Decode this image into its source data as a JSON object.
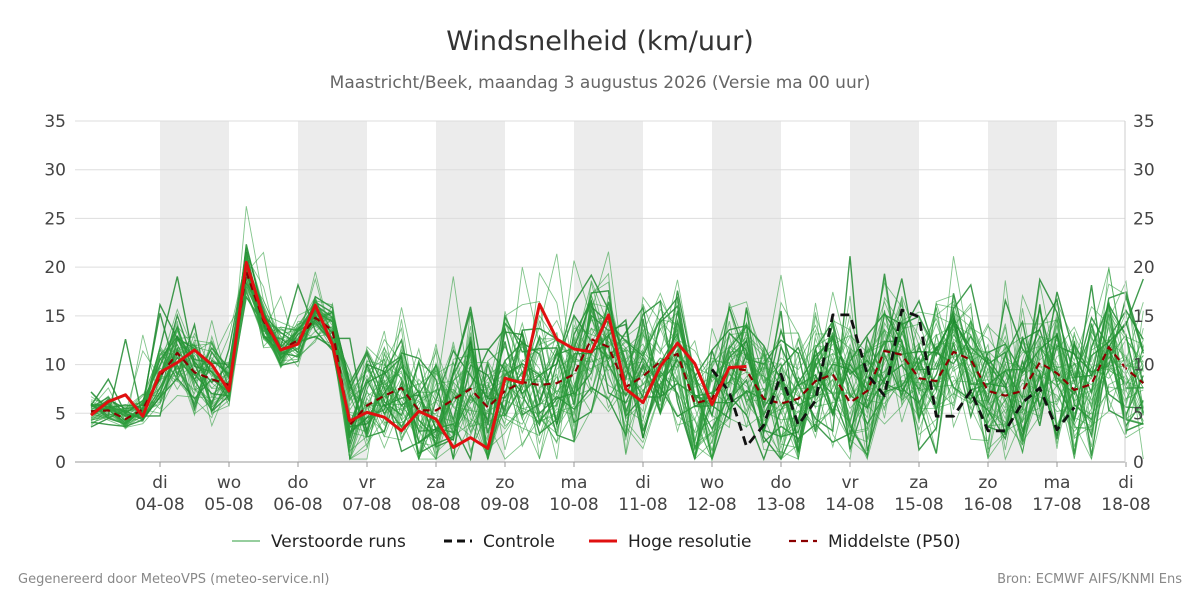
{
  "title": "Windsnelheid (km/uur)",
  "subtitle": "Maastricht/Beek, maandag  3 augustus 2026 (Versie ma 00 uur)",
  "footer_left": "Gegenereerd door MeteoVPS (meteo-service.nl)",
  "footer_right": "Bron: ECMWF AIFS/KNMI Ens",
  "colors": {
    "ensemble": "#2e9e3e",
    "control": "#111111",
    "high_res": "#e01010",
    "median": "#8b0000",
    "weekend_band": "#ececec",
    "grid": "#dddddd"
  },
  "chart_data": {
    "type": "line",
    "ylim": [
      0,
      35
    ],
    "yticks": [
      0,
      5,
      10,
      15,
      20,
      25,
      30,
      35
    ],
    "xlim": [
      0,
      15
    ],
    "x_step_days": 0.25,
    "xticks": [
      {
        "day": "di",
        "date": "04-08"
      },
      {
        "day": "wo",
        "date": "05-08"
      },
      {
        "day": "do",
        "date": "06-08"
      },
      {
        "day": "vr",
        "date": "07-08"
      },
      {
        "day": "za",
        "date": "08-08"
      },
      {
        "day": "zo",
        "date": "09-08"
      },
      {
        "day": "ma",
        "date": "10-08"
      },
      {
        "day": "di",
        "date": "11-08"
      },
      {
        "day": "wo",
        "date": "12-08"
      },
      {
        "day": "do",
        "date": "13-08"
      },
      {
        "day": "vr",
        "date": "14-08"
      },
      {
        "day": "za",
        "date": "15-08"
      },
      {
        "day": "zo",
        "date": "16-08"
      },
      {
        "day": "ma",
        "date": "17-08"
      },
      {
        "day": "di",
        "date": "18-08"
      }
    ],
    "shaded_days": [
      1,
      3,
      5,
      7,
      9,
      11,
      13
    ],
    "legend_position": "bottom",
    "legend": [
      "Verstoorde runs",
      "Controle",
      "Hoge resolutie",
      "Middelste (P50)"
    ],
    "series": [
      {
        "name": "Hoge resolutie",
        "style": "solid",
        "x_start": 0,
        "values": [
          4.8,
          6.2,
          6.9,
          4.7,
          9.2,
          10.2,
          11.5,
          10.0,
          7.3,
          20.5,
          14.8,
          11.5,
          12.1,
          16.1,
          12.0,
          4.2,
          5.1,
          4.6,
          3.2,
          5.2,
          4.4,
          1.5,
          2.5,
          1.4,
          8.6,
          8.1,
          16.2,
          12.6,
          11.6,
          11.3,
          15.1,
          7.5,
          6.1,
          9.8,
          12.2,
          10.1,
          5.9,
          9.7,
          9.8
        ]
      },
      {
        "name": "Middelste (P50)",
        "style": "dashed",
        "x_start": 0,
        "values": [
          5.2,
          5.3,
          4.4,
          5.4,
          8.8,
          11.2,
          9.2,
          8.5,
          7.9,
          19.5,
          14.5,
          11.5,
          12.5,
          14.8,
          13.5,
          3.8,
          5.8,
          6.8,
          7.6,
          5.3,
          5.3,
          6.4,
          7.5,
          5.6,
          7.3,
          8.2,
          7.9,
          8.1,
          9.0,
          12.6,
          11.8,
          7.7,
          8.8,
          10.3,
          11.1,
          6.0,
          6.5,
          9.7,
          9.4,
          6.5,
          6.0,
          6.5,
          8.3,
          9.0,
          6.1,
          7.3,
          11.4,
          11.0,
          8.6,
          8.3,
          11.3,
          10.5,
          7.3,
          6.8,
          7.3,
          10.2,
          9.1,
          7.4,
          8.0,
          11.8,
          9.6,
          8.1
        ]
      },
      {
        "name": "Controle",
        "style": "dashed",
        "x_start": 9,
        "values": [
          9.5,
          7.2,
          1.6,
          3.8,
          9.0,
          3.8,
          6.3,
          15.1,
          15.1,
          9.0,
          6.8,
          15.6,
          14.9,
          4.7,
          4.7,
          7.3,
          3.2,
          3.2,
          6.1,
          7.6,
          3.3,
          5.6
        ]
      }
    ]
  }
}
